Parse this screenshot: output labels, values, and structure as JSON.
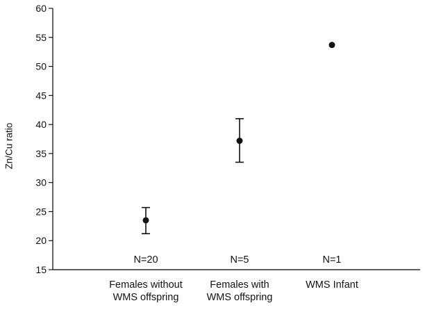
{
  "chart_data": {
    "type": "scatter",
    "title": "",
    "xlabel": "",
    "ylabel": "Zn/Cu ratio",
    "ylim": [
      15,
      60
    ],
    "yticks": [
      15,
      20,
      25,
      30,
      35,
      40,
      45,
      50,
      55,
      60
    ],
    "grid": false,
    "categories": [
      [
        "Females without",
        "WMS offspring"
      ],
      [
        "Females with",
        "WMS offspring"
      ],
      [
        "WMS Infant"
      ]
    ],
    "points": [
      {
        "mean": 23.5,
        "lower": 21.2,
        "upper": 25.7,
        "n_label": "N=20"
      },
      {
        "mean": 37.2,
        "lower": 33.5,
        "upper": 41.0,
        "n_label": "N=5"
      },
      {
        "mean": 53.7,
        "lower": null,
        "upper": null,
        "n_label": "N=1"
      }
    ]
  }
}
